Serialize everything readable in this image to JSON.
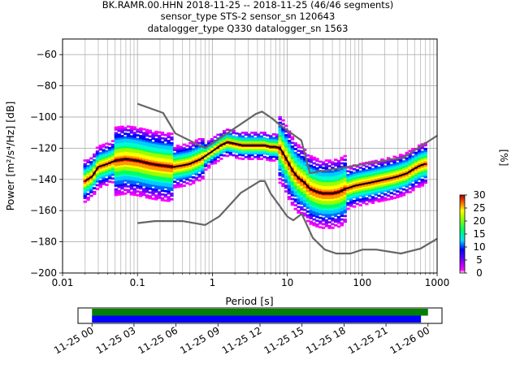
{
  "chart_data": [
    {
      "type": "heatmap",
      "title_lines": [
        "BK.RAMR.00.HHN   2018-11-25 -- 2018-11-25  (46/46 segments)",
        "sensor_type STS-2 sensor_sn 120643",
        "datalogger_type Q330 datalogger_sn 1563"
      ],
      "xlabel": "Period [s]",
      "ylabel": "Power [m²/s⁴/Hz] [dB]",
      "xscale": "log",
      "xlim": [
        0.01,
        1000
      ],
      "ylim": [
        -200,
        -50
      ],
      "xticks": [
        0.01,
        0.1,
        1,
        10,
        100,
        1000
      ],
      "xtick_labels": [
        "0.01",
        "0.1",
        "1",
        "10",
        "100",
        "1000"
      ],
      "yticks": [
        -200,
        -180,
        -160,
        -140,
        -120,
        -100,
        -80,
        -60
      ],
      "ytick_labels": [
        "−200",
        "−180",
        "−160",
        "−140",
        "−120",
        "−100",
        "−80",
        "−60"
      ],
      "grid": true,
      "colorbar": {
        "label": "[%]",
        "range": [
          0,
          30
        ],
        "ticks": [
          0,
          5,
          10,
          15,
          20,
          25,
          30
        ],
        "tick_labels": [
          "0",
          "5",
          "10",
          "15",
          "20",
          "25",
          "30"
        ]
      },
      "nhnm": {
        "color": "#666666",
        "x": [
          0.1,
          0.22,
          0.32,
          0.8,
          3.8,
          4.6,
          6.3,
          7.9,
          15.4,
          20,
          354.8,
          1000
        ],
        "y": [
          -91.5,
          -97.4,
          -110.5,
          -120,
          -98,
          -96.5,
          -101,
          -105,
          -115,
          -136,
          -126,
          -112
        ]
      },
      "nlnm": {
        "color": "#666666",
        "x": [
          0.1,
          0.17,
          0.4,
          0.8,
          1.24,
          2.4,
          4.3,
          5,
          6,
          10,
          12,
          15.6,
          21.9,
          31.6,
          45,
          70,
          101,
          154,
          328,
          600,
          1000
        ],
        "y": [
          -168,
          -166.7,
          -166.7,
          -169.2,
          -163.7,
          -148.6,
          -141.1,
          -141.1,
          -149,
          -163.8,
          -166.2,
          -162.1,
          -177.5,
          -185,
          -187.5,
          -187.5,
          -185,
          -185,
          -187.5,
          -184.4,
          -178
        ]
      },
      "mode": {
        "color": "#000000",
        "x": [
          0.02,
          0.025,
          0.03,
          0.04,
          0.05,
          0.07,
          0.1,
          0.15,
          0.2,
          0.3,
          0.4,
          0.5,
          0.7,
          1,
          1.3,
          1.6,
          2,
          2.5,
          3,
          4,
          5,
          6,
          7,
          8,
          9,
          10,
          12,
          14,
          17,
          20,
          25,
          30,
          40,
          50,
          60,
          70,
          80,
          100,
          130,
          160,
          200,
          250,
          300,
          400,
          500,
          600,
          700
        ],
        "y": [
          -141,
          -138,
          -132,
          -130,
          -128,
          -127,
          -128,
          -130,
          -131,
          -132,
          -131,
          -130,
          -127,
          -122,
          -118,
          -116,
          -117,
          -118,
          -118,
          -118,
          -118,
          -119,
          -119,
          -120,
          -124,
          -128,
          -135,
          -139,
          -142,
          -146,
          -148,
          -149,
          -149,
          -148,
          -146,
          -145,
          -144,
          -143,
          -142,
          -141,
          -140,
          -139,
          -138,
          -136,
          -133,
          -131,
          -130
        ]
      }
    },
    {
      "type": "bar",
      "xtick_labels": [
        "11-25 00",
        "11-25 03",
        "11-25 06",
        "11-25 09",
        "11-25 12",
        "11-25 15",
        "11-25 18",
        "11-25 21",
        "11-26 00"
      ],
      "xlim_hours": [
        -1,
        25
      ],
      "bars": [
        {
          "color": "#008000",
          "start_hour": 0,
          "end_hour": 24.0
        },
        {
          "color": "#0000ff",
          "start_hour": 0,
          "end_hour": 23.5
        }
      ]
    }
  ]
}
